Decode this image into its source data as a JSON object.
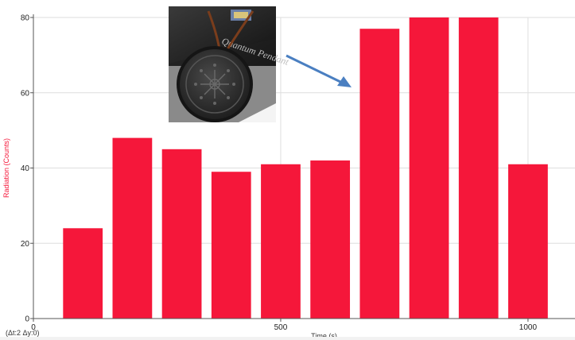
{
  "chart_data": {
    "type": "bar",
    "x": [
      100,
      200,
      300,
      400,
      500,
      600,
      700,
      800,
      900,
      1000
    ],
    "values": [
      24,
      48,
      45,
      39,
      41,
      42,
      77,
      80,
      80,
      41
    ],
    "xlabel": "Time (s)",
    "ylabel": "Radiation (Counts)",
    "xlim": [
      0,
      1095
    ],
    "ylim": [
      0,
      80
    ],
    "x_ticks": [
      0,
      500,
      1000
    ],
    "y_ticks": [
      0,
      20,
      40,
      60,
      80
    ],
    "grid": true,
    "bar_color": "#f5173a",
    "ylabel_color": "#f5173a"
  },
  "readout": "(Δt:2 Δy:0)",
  "photo": {
    "subject": "quantum-pendant-photo",
    "package_text": "Quantum Pendant",
    "arrow_color": "#4a7fc1"
  }
}
